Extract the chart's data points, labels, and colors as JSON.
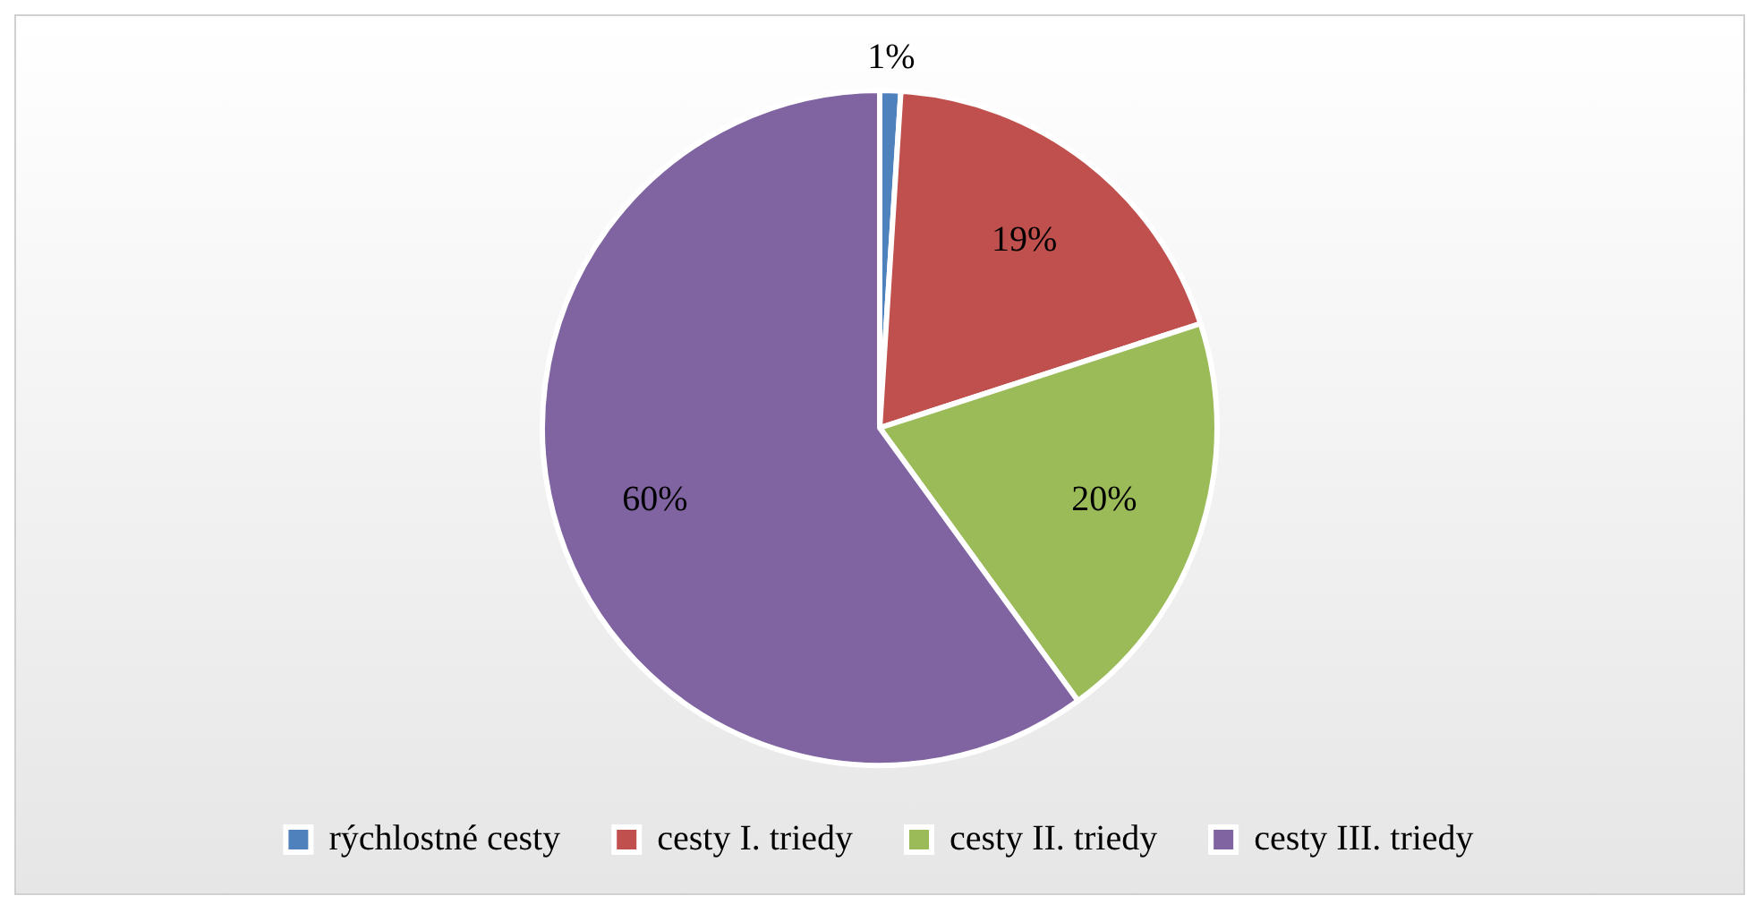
{
  "chart_data": {
    "type": "pie",
    "categories": [
      "rýchlostné cesty",
      "cesty I. triedy",
      "cesty II. triedy",
      "cesty III. triedy"
    ],
    "values": [
      1,
      19,
      20,
      60
    ],
    "colors": [
      "#4f81bd",
      "#c0504d",
      "#9bbb59",
      "#8064a2"
    ],
    "value_labels": [
      "1%",
      "19%",
      "20%",
      "60%"
    ],
    "legend": "bottom"
  }
}
